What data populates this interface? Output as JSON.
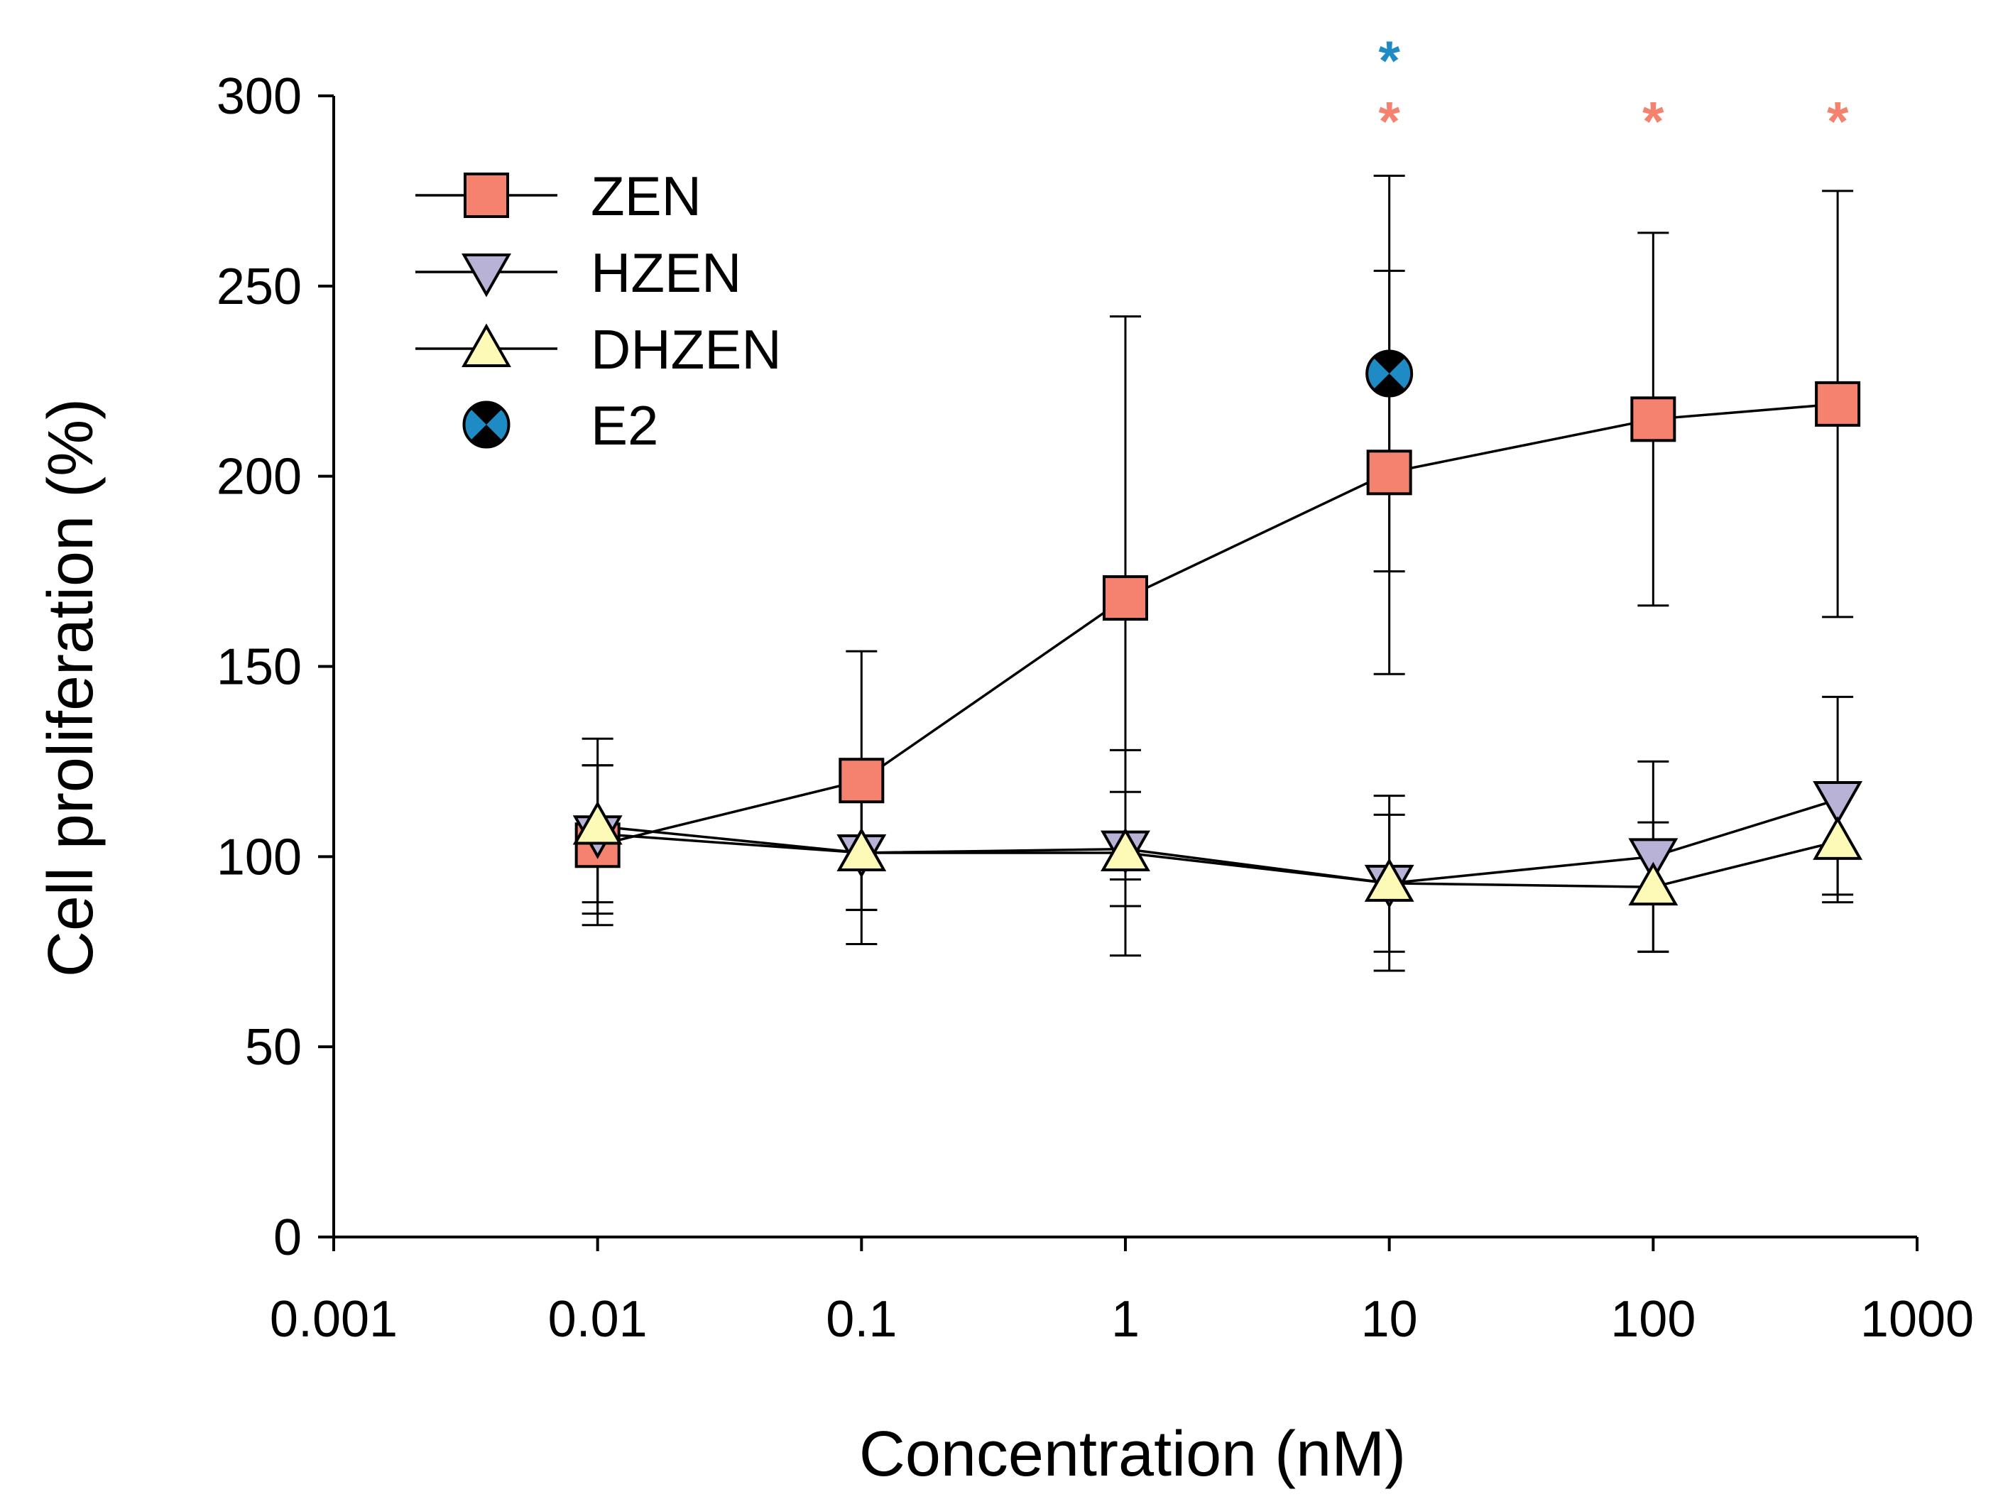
{
  "chart_data": {
    "type": "line",
    "title": "",
    "xlabel": "Concentration (nM)",
    "ylabel": "Cell proliferation (%)",
    "x_scale": "log",
    "xlim": [
      0.001,
      1000
    ],
    "ylim": [
      0,
      300
    ],
    "x_ticks": [
      0.001,
      0.01,
      0.1,
      1,
      10,
      100,
      1000
    ],
    "x_tick_labels": [
      "0.001",
      "0.01",
      "0.1",
      "1",
      "10",
      "100",
      "1000"
    ],
    "y_ticks": [
      0,
      50,
      100,
      150,
      200,
      250,
      300
    ],
    "y_tick_labels": [
      "0",
      "50",
      "100",
      "150",
      "200",
      "250",
      "300"
    ],
    "grid": false,
    "legend_position": "top-left",
    "series": [
      {
        "name": "ZEN",
        "marker": "square",
        "color": "#f4826e",
        "connected": true,
        "x": [
          0.01,
          0.1,
          1,
          10,
          100,
          500
        ],
        "y": [
          103,
          120,
          168,
          201,
          215,
          219
        ],
        "err": [
          21,
          34,
          74,
          53,
          49,
          56
        ]
      },
      {
        "name": "HZEN",
        "marker": "triangle-down",
        "color": "#b8b3d6",
        "connected": true,
        "x": [
          0.01,
          0.1,
          1,
          10,
          100,
          500
        ],
        "y": [
          106,
          101,
          102,
          93,
          100,
          115
        ],
        "err": [
          18,
          15,
          15,
          18,
          25,
          27
        ]
      },
      {
        "name": "DHZEN",
        "marker": "triangle-up",
        "color": "#fdf9b6",
        "connected": true,
        "x": [
          0.01,
          0.1,
          1,
          10,
          100,
          500
        ],
        "y": [
          108,
          101,
          101,
          93,
          92,
          104
        ],
        "err": [
          23,
          24,
          27,
          23,
          17,
          14
        ]
      },
      {
        "name": "E2",
        "marker": "circle-x",
        "color": "#1f8bc4",
        "connected": false,
        "x": [
          10
        ],
        "y": [
          227
        ],
        "err": [
          52
        ]
      }
    ],
    "annotations": [
      {
        "text": "*",
        "x": 10,
        "y": 314,
        "color": "#1f8bc4"
      },
      {
        "text": "*",
        "x": 10,
        "y": 298,
        "color": "#f4826e"
      },
      {
        "text": "*",
        "x": 100,
        "y": 298,
        "color": "#f4826e"
      },
      {
        "text": "*",
        "x": 500,
        "y": 298,
        "color": "#f4826e"
      }
    ]
  }
}
